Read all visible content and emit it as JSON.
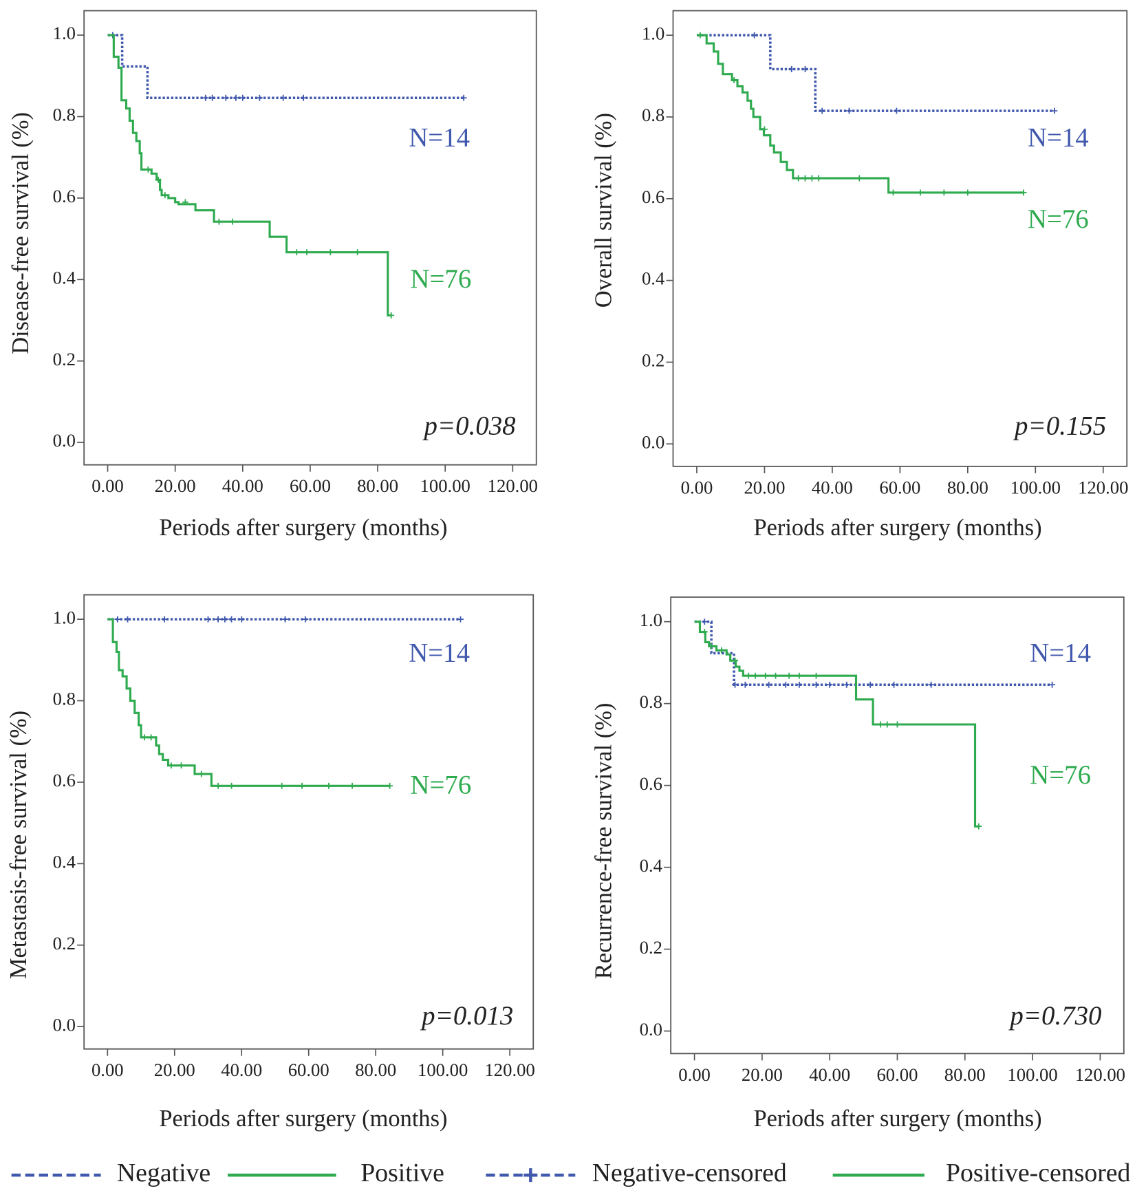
{
  "chart_data": [
    {
      "type": "line",
      "y_label": "Disease-free survival (%)",
      "x_label": "Periods after surgery (months)",
      "xlim": [
        -7,
        127
      ],
      "ylim": [
        -0.055,
        1.06
      ],
      "xticks": [
        {
          "value": 0,
          "label": "0.00"
        },
        {
          "value": 20,
          "label": "20.00"
        },
        {
          "value": 40,
          "label": "40.00"
        },
        {
          "value": 60,
          "label": "60.00"
        },
        {
          "value": 80,
          "label": "80.00"
        },
        {
          "value": 100,
          "label": "100.00"
        },
        {
          "value": 120,
          "label": "120.00"
        }
      ],
      "yticks": [
        {
          "value": 0,
          "label": "0.0"
        },
        0.2,
        0.4,
        0.6,
        0.8,
        {
          "value": 1,
          "label": "1.0"
        }
      ],
      "series": [
        {
          "color": "#4058ad",
          "style": "dotted",
          "x": [
            0,
            4.3,
            4.3,
            11.8,
            11.8,
            105.5
          ],
          "values": [
            1,
            1,
            0.923,
            0.923,
            0.846,
            0.846
          ],
          "censored_x": [
            1.5,
            29,
            31,
            35,
            38,
            40,
            45,
            52,
            58,
            105.5
          ],
          "censored_values": [
            1,
            0.846,
            0.846,
            0.846,
            0.846,
            0.846,
            0.846,
            0.846,
            0.846,
            0.846
          ]
        },
        {
          "color": "#2eaa4f",
          "style": "solid",
          "x": [
            0,
            1.8,
            1.8,
            3.2,
            3.2,
            4.1,
            4.1,
            5.5,
            5.5,
            6.5,
            6.5,
            7.5,
            7.5,
            8.5,
            8.5,
            9.5,
            9.5,
            10,
            10,
            13,
            13,
            14.5,
            14.5,
            15.5,
            15.5,
            16,
            16,
            18,
            18,
            20,
            20,
            21,
            21,
            26,
            26,
            31.5,
            31.5,
            48,
            48,
            53,
            53,
            83,
            83,
            84
          ],
          "values": [
            1,
            1,
            0.947,
            0.947,
            0.92,
            0.92,
            0.84,
            0.84,
            0.82,
            0.82,
            0.79,
            0.79,
            0.76,
            0.76,
            0.74,
            0.74,
            0.71,
            0.71,
            0.67,
            0.67,
            0.66,
            0.66,
            0.645,
            0.645,
            0.62,
            0.62,
            0.607,
            0.607,
            0.6,
            0.6,
            0.59,
            0.59,
            0.585,
            0.585,
            0.57,
            0.57,
            0.542,
            0.542,
            0.505,
            0.505,
            0.467,
            0.467,
            0.312,
            0.312
          ],
          "censored_x": [
            12,
            15,
            17,
            23,
            33,
            37,
            56,
            59,
            66,
            74,
            84
          ],
          "censored_values": [
            0.67,
            0.645,
            0.607,
            0.59,
            0.542,
            0.542,
            0.467,
            0.467,
            0.467,
            0.467,
            0.312
          ]
        }
      ],
      "annotations": [
        "N=14",
        "N=76",
        "p=0.038"
      ]
    },
    {
      "type": "line",
      "y_label": "Overall survival (%)",
      "x_label": "Periods after surgery (months)",
      "xlim": [
        -7,
        127
      ],
      "ylim": [
        -0.055,
        1.06
      ],
      "xticks": [
        {
          "value": 0,
          "label": "0.00"
        },
        {
          "value": 20,
          "label": "20.00"
        },
        {
          "value": 40,
          "label": "40.00"
        },
        {
          "value": 60,
          "label": "60.00"
        },
        {
          "value": 80,
          "label": "80.00"
        },
        {
          "value": 100,
          "label": "100.00"
        },
        {
          "value": 120,
          "label": "120.00"
        }
      ],
      "yticks": [
        {
          "value": 0,
          "label": "0.0"
        },
        0.2,
        0.4,
        0.6,
        0.8,
        {
          "value": 1,
          "label": "1.0"
        }
      ],
      "series": [
        {
          "color": "#4058ad",
          "style": "dotted",
          "x": [
            0,
            21.7,
            21.7,
            35,
            35,
            105.6
          ],
          "values": [
            1,
            1,
            0.917,
            0.917,
            0.815,
            0.815
          ],
          "censored_x": [
            17,
            28,
            32,
            37,
            45,
            59,
            105.6
          ],
          "censored_values": [
            1,
            0.917,
            0.917,
            0.815,
            0.815,
            0.815,
            0.815
          ]
        },
        {
          "color": "#2eaa4f",
          "style": "solid",
          "x": [
            0,
            2.9,
            2.9,
            5,
            5,
            6.3,
            6.3,
            7.7,
            7.7,
            10.4,
            10.4,
            12,
            12,
            13.5,
            13.5,
            15,
            15,
            16,
            16,
            16.7,
            16.7,
            18.7,
            18.7,
            19.8,
            19.8,
            21.7,
            21.7,
            22.8,
            22.8,
            24.8,
            24.8,
            26.6,
            26.6,
            28.4,
            28.4,
            56.6,
            56.6,
            96.5
          ],
          "values": [
            1,
            1,
            0.98,
            0.98,
            0.96,
            0.96,
            0.93,
            0.93,
            0.905,
            0.905,
            0.89,
            0.89,
            0.875,
            0.875,
            0.86,
            0.86,
            0.84,
            0.84,
            0.82,
            0.82,
            0.8,
            0.8,
            0.77,
            0.77,
            0.755,
            0.755,
            0.73,
            0.73,
            0.713,
            0.713,
            0.69,
            0.69,
            0.67,
            0.67,
            0.65,
            0.65,
            0.615,
            0.615
          ],
          "censored_x": [
            1,
            11,
            20,
            30,
            32,
            34,
            36,
            48,
            58,
            66,
            73,
            80,
            96.5
          ],
          "censored_values": [
            1,
            0.89,
            0.77,
            0.65,
            0.65,
            0.65,
            0.65,
            0.65,
            0.615,
            0.615,
            0.615,
            0.615,
            0.615
          ]
        }
      ],
      "annotations": [
        "N=14",
        "N=76",
        "p=0.155"
      ]
    },
    {
      "type": "line",
      "y_label": "Metastasis-free survival (%)",
      "x_label": "Periods after surgery (months)",
      "xlim": [
        -7,
        127
      ],
      "ylim": [
        -0.055,
        1.06
      ],
      "xticks": [
        {
          "value": 0,
          "label": "0.00"
        },
        {
          "value": 20,
          "label": "20.00"
        },
        {
          "value": 40,
          "label": "40.00"
        },
        {
          "value": 60,
          "label": "60.00"
        },
        {
          "value": 80,
          "label": "80.00"
        },
        {
          "value": 100,
          "label": "100.00"
        },
        {
          "value": 120,
          "label": "120.00"
        }
      ],
      "yticks": [
        {
          "value": 0,
          "label": "0.0"
        },
        0.2,
        0.4,
        0.6,
        0.8,
        {
          "value": 1,
          "label": "1.0"
        }
      ],
      "series": [
        {
          "color": "#4058ad",
          "style": "dotted",
          "x": [
            0,
            105.3
          ],
          "values": [
            1,
            1
          ],
          "censored_x": [
            3,
            6,
            17,
            30,
            33,
            35,
            37,
            40,
            53,
            59,
            105.3
          ],
          "censored_values": [
            1,
            1,
            1,
            1,
            1,
            1,
            1,
            1,
            1,
            1,
            1
          ]
        },
        {
          "color": "#2eaa4f",
          "style": "solid",
          "x": [
            0,
            1.6,
            1.6,
            2.7,
            2.7,
            3.4,
            3.4,
            4.5,
            4.5,
            5.7,
            5.7,
            6.8,
            6.8,
            8.1,
            8.1,
            9.3,
            9.3,
            10,
            10,
            14.5,
            14.5,
            15.4,
            15.4,
            16.5,
            16.5,
            18.1,
            18.1,
            26,
            26,
            31,
            31,
            84.2
          ],
          "values": [
            1,
            1,
            0.944,
            0.944,
            0.92,
            0.92,
            0.875,
            0.875,
            0.86,
            0.86,
            0.83,
            0.83,
            0.8,
            0.8,
            0.77,
            0.77,
            0.74,
            0.74,
            0.71,
            0.71,
            0.69,
            0.69,
            0.669,
            0.669,
            0.655,
            0.655,
            0.641,
            0.641,
            0.62,
            0.62,
            0.591,
            0.591
          ],
          "censored_x": [
            11,
            13,
            19,
            22,
            28,
            33,
            37,
            52,
            58,
            66,
            73,
            84.2
          ],
          "censored_values": [
            0.71,
            0.71,
            0.641,
            0.641,
            0.62,
            0.591,
            0.591,
            0.591,
            0.591,
            0.591,
            0.591,
            0.591
          ]
        }
      ],
      "annotations": [
        "N=14",
        "N=76",
        "p=0.013"
      ]
    },
    {
      "type": "line",
      "y_label": "Recurrence-free survival (%)",
      "x_label": "Periods after surgery (months)",
      "xlim": [
        -7,
        127
      ],
      "ylim": [
        -0.055,
        1.06
      ],
      "xticks": [
        {
          "value": 0,
          "label": "0.00"
        },
        {
          "value": 20,
          "label": "20.00"
        },
        {
          "value": 40,
          "label": "40.00"
        },
        {
          "value": 60,
          "label": "60.00"
        },
        {
          "value": 80,
          "label": "80.00"
        },
        {
          "value": 100,
          "label": "100.00"
        },
        {
          "value": 120,
          "label": "120.00"
        }
      ],
      "yticks": [
        {
          "value": 0,
          "label": "0.0"
        },
        0.2,
        0.4,
        0.6,
        0.8,
        {
          "value": 1,
          "label": "1.0"
        }
      ],
      "series": [
        {
          "color": "#4058ad",
          "style": "dotted",
          "x": [
            0,
            5,
            5,
            11.7,
            11.7,
            105.8
          ],
          "values": [
            1,
            1,
            0.923,
            0.923,
            0.846,
            0.846
          ],
          "censored_x": [
            3,
            12,
            15,
            22,
            27,
            31,
            36,
            40,
            45,
            52,
            59,
            70,
            105.8
          ],
          "censored_values": [
            1,
            0.846,
            0.846,
            0.846,
            0.846,
            0.846,
            0.846,
            0.846,
            0.846,
            0.846,
            0.846,
            0.846,
            0.846
          ]
        },
        {
          "color": "#2eaa4f",
          "style": "solid",
          "x": [
            0,
            1.6,
            1.6,
            3.2,
            3.2,
            4.3,
            4.3,
            6.5,
            6.5,
            9.5,
            9.5,
            10.6,
            10.6,
            12.2,
            12.2,
            13.3,
            13.3,
            14.4,
            14.4,
            47.8,
            47.8,
            52.8,
            52.8,
            83,
            83,
            84.1
          ],
          "values": [
            1,
            1,
            0.975,
            0.975,
            0.95,
            0.95,
            0.94,
            0.94,
            0.93,
            0.93,
            0.92,
            0.92,
            0.905,
            0.905,
            0.89,
            0.89,
            0.88,
            0.88,
            0.868,
            0.868,
            0.81,
            0.81,
            0.749,
            0.749,
            0.5,
            0.5
          ],
          "censored_x": [
            3,
            5,
            8,
            12,
            16,
            18,
            21,
            24,
            28,
            31,
            36,
            55,
            57,
            60,
            84.1
          ],
          "censored_values": [
            0.975,
            0.94,
            0.93,
            0.905,
            0.868,
            0.868,
            0.868,
            0.868,
            0.868,
            0.868,
            0.868,
            0.749,
            0.749,
            0.749,
            0.5
          ]
        }
      ],
      "annotations": [
        "N=14",
        "N=76",
        "p=0.730"
      ]
    }
  ],
  "legend": [
    {
      "label": "Negative",
      "color": "#4058ad",
      "style": "dashed",
      "censored": false
    },
    {
      "label": "Positive",
      "color": "#2eaa4f",
      "style": "solid",
      "censored": false
    },
    {
      "label": "Negative-censored",
      "color": "#4058ad",
      "style": "dashed",
      "censored": true
    },
    {
      "label": "Positive-censored",
      "color": "#2eaa4f",
      "style": "solid",
      "censored": true
    }
  ]
}
